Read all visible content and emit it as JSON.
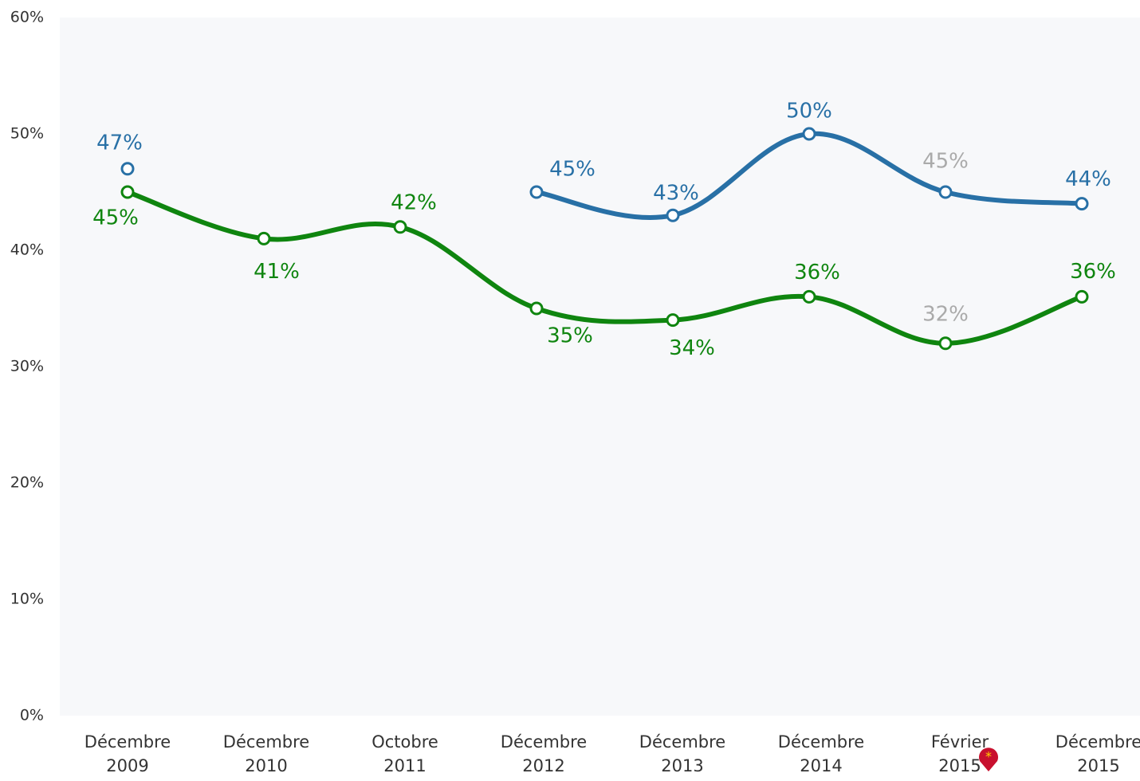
{
  "chart_data": {
    "type": "line",
    "categories": [
      "Décembre 2009",
      "Décembre 2010",
      "Octobre 2011",
      "Décembre 2012",
      "Décembre 2013",
      "Décembre 2014",
      "Février 2015",
      "Décembre 2015"
    ],
    "series": [
      {
        "name": null,
        "color": "#2870a6",
        "values": [
          47,
          null,
          null,
          45,
          43,
          50,
          45,
          44
        ],
        "value_labels": [
          "47%",
          null,
          null,
          "45%",
          "43%",
          "50%",
          "45%",
          "44%"
        ]
      },
      {
        "name": null,
        "color": "#0f850f",
        "values": [
          45,
          41,
          42,
          35,
          34,
          36,
          32,
          36
        ],
        "value_labels": [
          "45%",
          "41%",
          "42%",
          "35%",
          "34%",
          "36%",
          "32%",
          "36%"
        ]
      }
    ],
    "ylim": [
      0,
      60
    ],
    "yticks": [
      {
        "value": 0,
        "label": "0%"
      },
      {
        "value": 10,
        "label": "10%"
      },
      {
        "value": 20,
        "label": "20%"
      },
      {
        "value": 30,
        "label": "30%"
      },
      {
        "value": 40,
        "label": "40%"
      },
      {
        "value": 50,
        "label": "50%"
      },
      {
        "value": 60,
        "label": "60%"
      }
    ],
    "grid": false
  }
}
